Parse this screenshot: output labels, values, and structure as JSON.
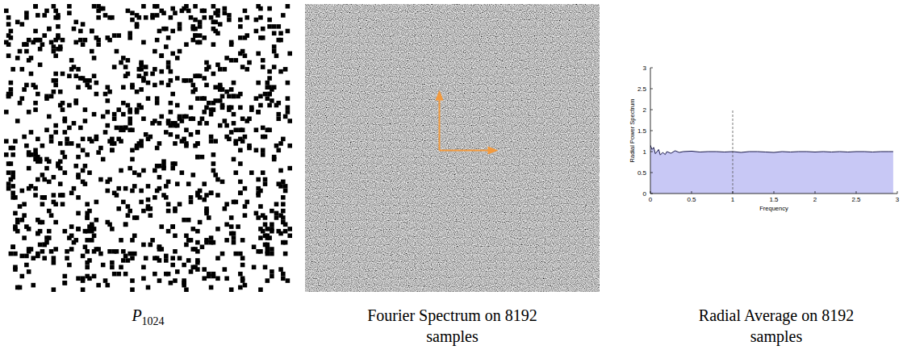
{
  "chart_data": {
    "type": "area",
    "xlabel": "Frequency",
    "ylabel": "Radial Power Spectrum",
    "x": [
      0,
      0.02,
      0.04,
      0.06,
      0.08,
      0.1,
      0.12,
      0.15,
      0.18,
      0.2,
      0.25,
      0.3,
      0.35,
      0.4,
      0.5,
      0.6,
      0.7,
      0.8,
      0.9,
      1,
      1.1,
      1.2,
      1.3,
      1.4,
      1.5,
      1.6,
      1.7,
      1.8,
      1.9,
      2,
      2.1,
      2.2,
      2.3,
      2.4,
      2.5,
      2.6,
      2.7,
      2.8,
      2.9,
      2.95
    ],
    "values": [
      1.15,
      1.05,
      1.1,
      0.95,
      1.0,
      1.05,
      0.92,
      0.98,
      0.93,
      1.0,
      0.96,
      1.02,
      0.98,
      1.0,
      1.01,
      0.99,
      1.0,
      1.0,
      0.99,
      1.0,
      0.98,
      1.0,
      1.0,
      0.99,
      0.98,
      1.0,
      0.99,
      1.0,
      1.0,
      0.99,
      1.0,
      0.99,
      1.0,
      0.99,
      1.0,
      1.0,
      0.99,
      1.0,
      1.0,
      1.0
    ],
    "color": "#c8c8f5",
    "xlim": [
      0,
      3
    ],
    "ylim": [
      0,
      3
    ],
    "xticks": [
      0,
      0.5,
      1,
      1.5,
      2,
      2.5,
      3
    ],
    "yticks": [
      0,
      0.5,
      1,
      1.5,
      2,
      2.5,
      3
    ],
    "reference_line": {
      "x": 1,
      "ymax": 2
    }
  },
  "panels": {
    "points": {
      "symbol": "P",
      "subscript": 1024
    },
    "spectrum": {
      "caption": "Fourier Spectrum on 8192 samples"
    },
    "radial": {
      "caption": "Radial Average on 8192 samples"
    }
  }
}
